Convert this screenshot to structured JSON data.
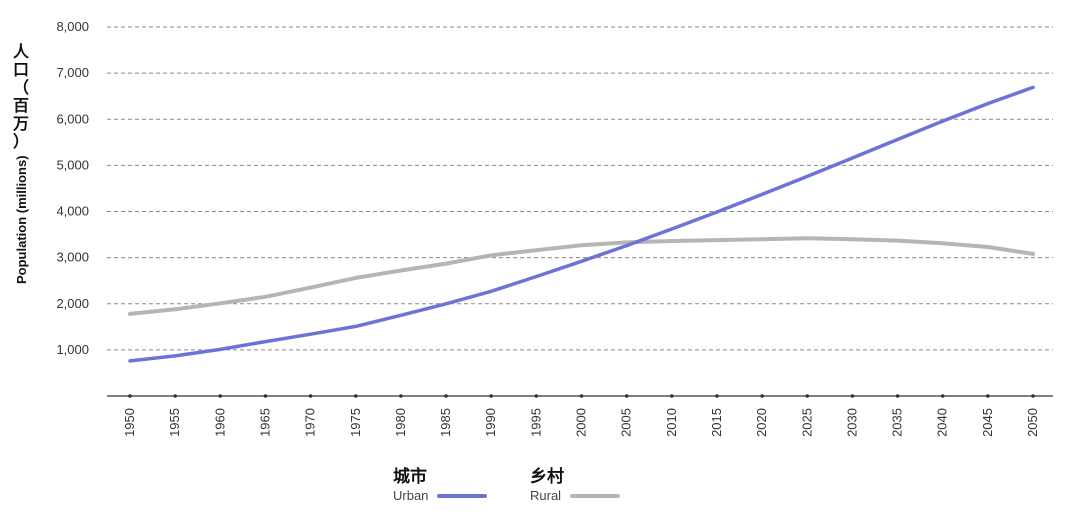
{
  "chart_data": {
    "type": "line",
    "ylabel": "Population (millions)",
    "ylabel_zh": [
      "人",
      "口",
      "（",
      "百",
      "万",
      "）"
    ],
    "ylim": [
      0,
      8000
    ],
    "yticks": [
      1000,
      2000,
      3000,
      4000,
      5000,
      6000,
      7000,
      8000
    ],
    "ytick_labels": [
      "1,000",
      "2,000",
      "3,000",
      "4,000",
      "5,000",
      "6,000",
      "7,000",
      "8,000"
    ],
    "grid": "horizontal-dashed",
    "x": [
      1950,
      1955,
      1960,
      1965,
      1970,
      1975,
      1980,
      1985,
      1990,
      1995,
      2000,
      2005,
      2010,
      2015,
      2020,
      2025,
      2030,
      2035,
      2040,
      2045,
      2050
    ],
    "x_labels": [
      "1950",
      "1955",
      "1960",
      "1965",
      "1970",
      "1975",
      "1980",
      "1985",
      "1990",
      "1995",
      "2000",
      "2005",
      "2010",
      "2015",
      "2020",
      "2025",
      "2030",
      "2035",
      "2040",
      "2045",
      "2050"
    ],
    "series": [
      {
        "name": "Urban",
        "name_zh": "城市",
        "color": "#6b74d6",
        "values": [
          760,
          870,
          1010,
          1180,
          1340,
          1510,
          1750,
          2000,
          2270,
          2590,
          2920,
          3260,
          3620,
          3990,
          4370,
          4760,
          5160,
          5560,
          5960,
          6340,
          6690
        ]
      },
      {
        "name": "Rural",
        "name_zh": "乡村",
        "color": "#b5b5b5",
        "values": [
          1780,
          1880,
          2010,
          2150,
          2350,
          2560,
          2720,
          2870,
          3050,
          3160,
          3270,
          3330,
          3360,
          3380,
          3400,
          3420,
          3400,
          3370,
          3310,
          3230,
          3080
        ]
      }
    ],
    "legend_position": "bottom-center"
  }
}
